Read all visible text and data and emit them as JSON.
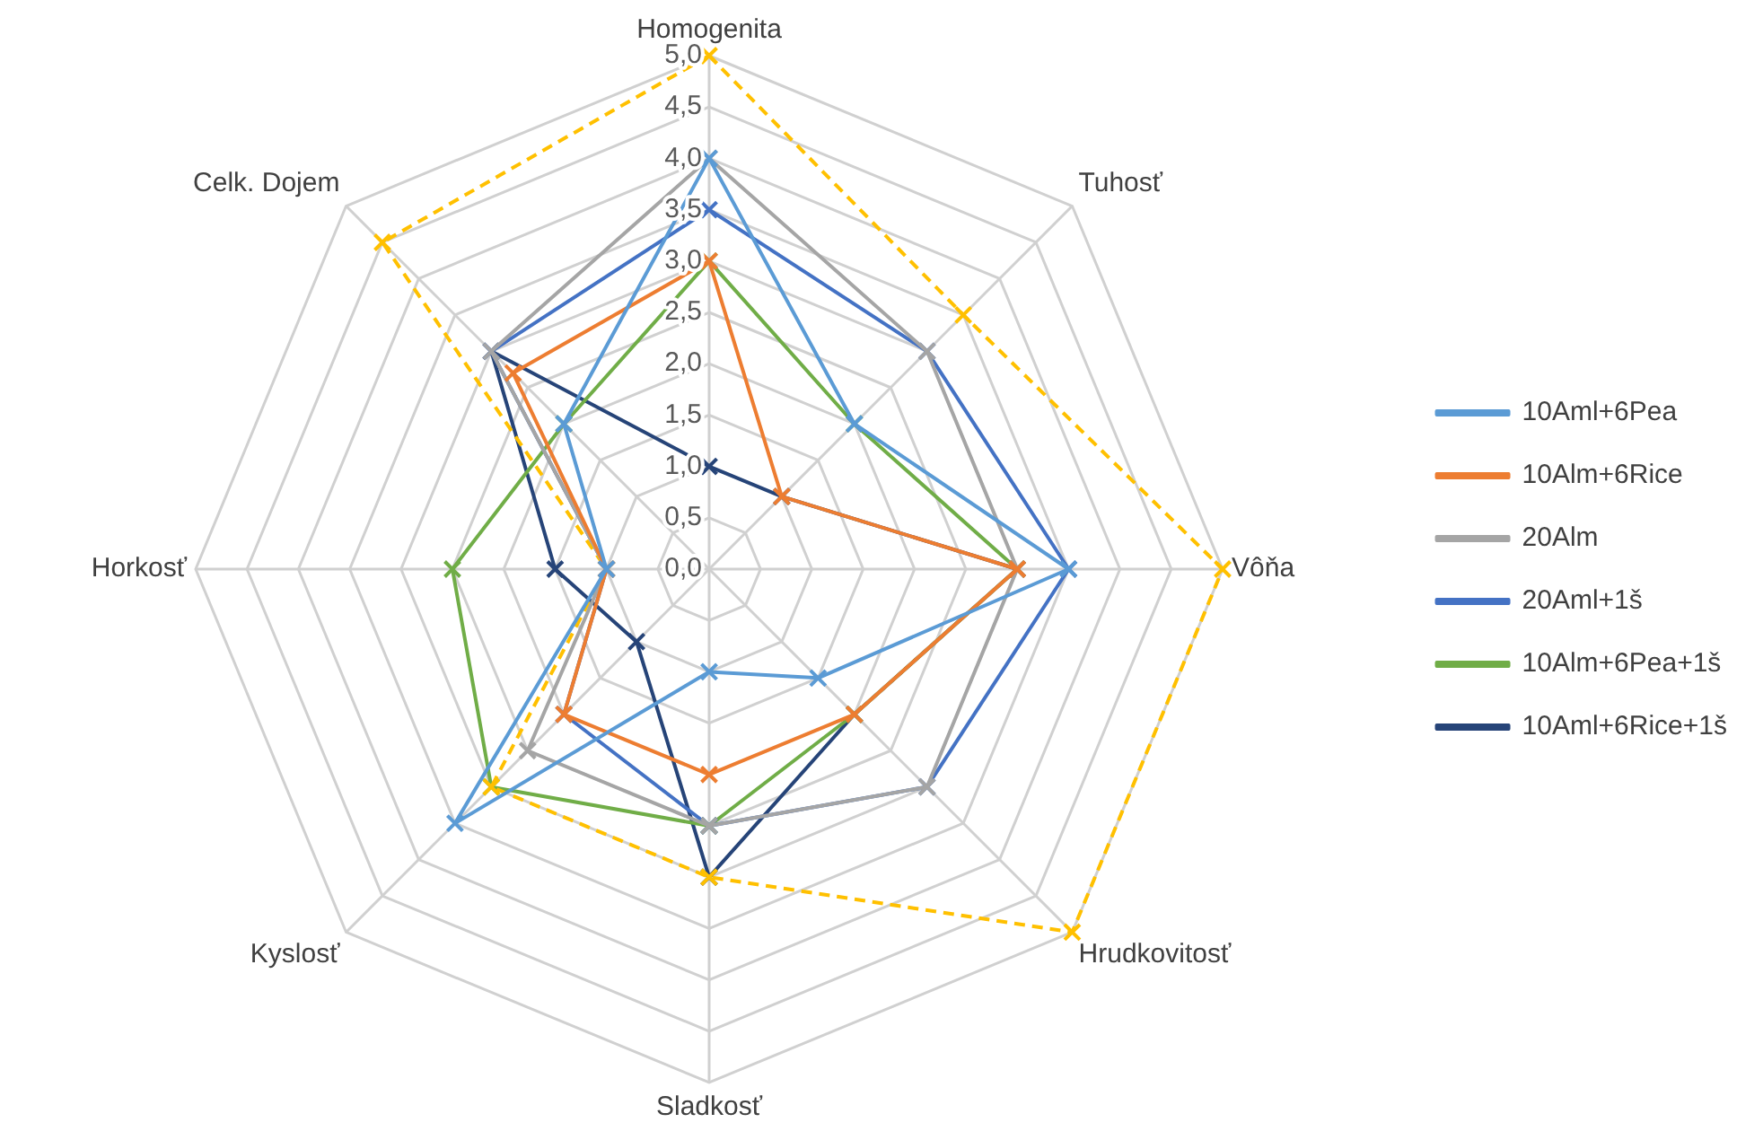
{
  "chart_data": {
    "type": "radar",
    "categories": [
      "Homogenita",
      "Tuhosť",
      "Vôňa",
      "Hrudkovitosť",
      "Sladkosť",
      "Kyslosť",
      "Horkosť",
      "Celk. Dojem"
    ],
    "ylim": [
      0,
      5
    ],
    "yticks": [
      {
        "value": 0,
        "label": "0,0"
      },
      {
        "value": 0.5,
        "label": "0,5"
      },
      {
        "value": 1,
        "label": "1,0"
      },
      {
        "value": 1.5,
        "label": "1,5"
      },
      {
        "value": 2,
        "label": "2,0"
      },
      {
        "value": 2.5,
        "label": "2,5"
      },
      {
        "value": 3,
        "label": "3,0"
      },
      {
        "value": 3.5,
        "label": "3,5"
      },
      {
        "value": 4,
        "label": "4,0"
      },
      {
        "value": 4.5,
        "label": "4,5"
      },
      {
        "value": 5,
        "label": "5,0"
      }
    ],
    "grid": true,
    "legend": "right",
    "marker": "cross",
    "series": [
      {
        "name": "10Aml+6Pea",
        "color": "#5b9bd5",
        "values": [
          4,
          2,
          3.5,
          1.5,
          1,
          3.5,
          1,
          2
        ]
      },
      {
        "name": "10Alm+6Rice",
        "color": "#ed7d31",
        "values": [
          3,
          1,
          3,
          2,
          2,
          2,
          1,
          2.7
        ]
      },
      {
        "name": "20Alm",
        "color": "#a5a5a5",
        "values": [
          4,
          3,
          3,
          3,
          2.5,
          2.5,
          1,
          3
        ]
      },
      {
        "color": "#ffc000",
        "line_style": "dashed",
        "values": [
          5,
          3.5,
          5,
          5,
          3,
          3,
          1,
          4.5
        ]
      },
      {
        "name": "20Aml+1š",
        "color": "#4472c4",
        "values": [
          3.5,
          3,
          3.5,
          3,
          2.5,
          2,
          1,
          3
        ]
      },
      {
        "name": "10Alm+6Pea+1š",
        "color": "#70ad47",
        "values": [
          3,
          2,
          3,
          2,
          2.5,
          3,
          2.5,
          2
        ]
      },
      {
        "name": "10Aml+6Rice+1š",
        "color": "#264478",
        "values": [
          1,
          1,
          3,
          2,
          3,
          1,
          1.5,
          3
        ]
      }
    ]
  }
}
